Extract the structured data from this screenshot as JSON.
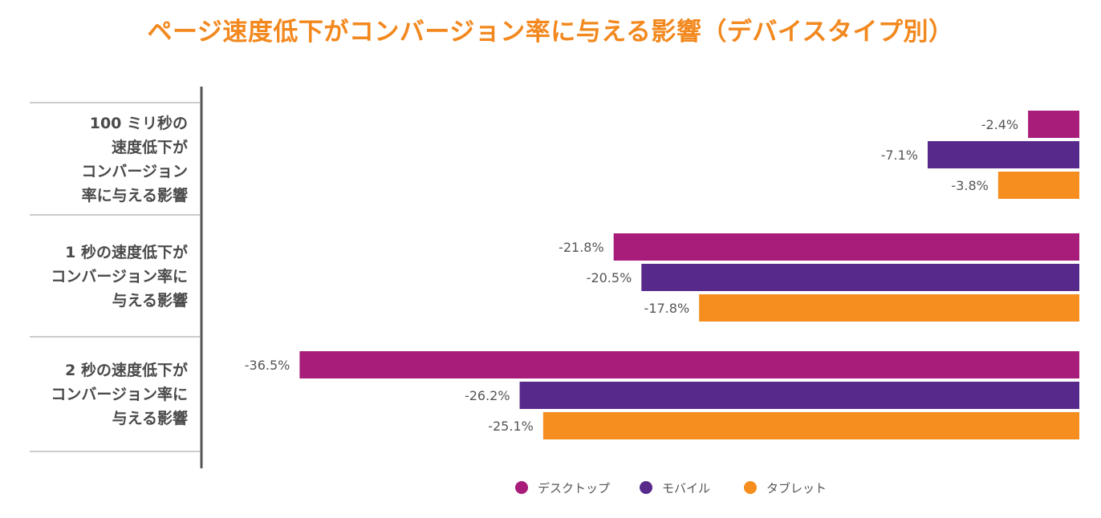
{
  "chart_data": {
    "type": "bar",
    "orientation": "horizontal",
    "title": "ページ速度低下がコンバージョン率に与える影響（デバイスタイプ別）",
    "categories": [
      "100 ミリ秒の\n速度低下が\nコンバージョン\n率に与える影響",
      "1 秒の速度低下が\nコンバージョン率に\n与える影響",
      "2 秒の速度低下が\nコンバージョン率に\n与える影響"
    ],
    "series": [
      {
        "name": "デスクトップ",
        "color": "#a81c7a",
        "values": [
          -2.4,
          -21.8,
          -36.5
        ],
        "labels": [
          "-2.4%",
          "-21.8%",
          "-36.5%"
        ]
      },
      {
        "name": "モバイル",
        "color": "#57298a",
        "values": [
          -7.1,
          -20.5,
          -26.2
        ],
        "labels": [
          "-7.1%",
          "-20.5%",
          "-26.2%"
        ]
      },
      {
        "name": "タブレット",
        "color": "#f58e1e",
        "values": [
          -3.8,
          -17.8,
          -25.1
        ],
        "labels": [
          "-3.8%",
          "-17.8%",
          "-25.1%"
        ]
      }
    ],
    "xlim": [
      -40,
      0
    ],
    "grid": false,
    "legend": "bottom-center"
  }
}
